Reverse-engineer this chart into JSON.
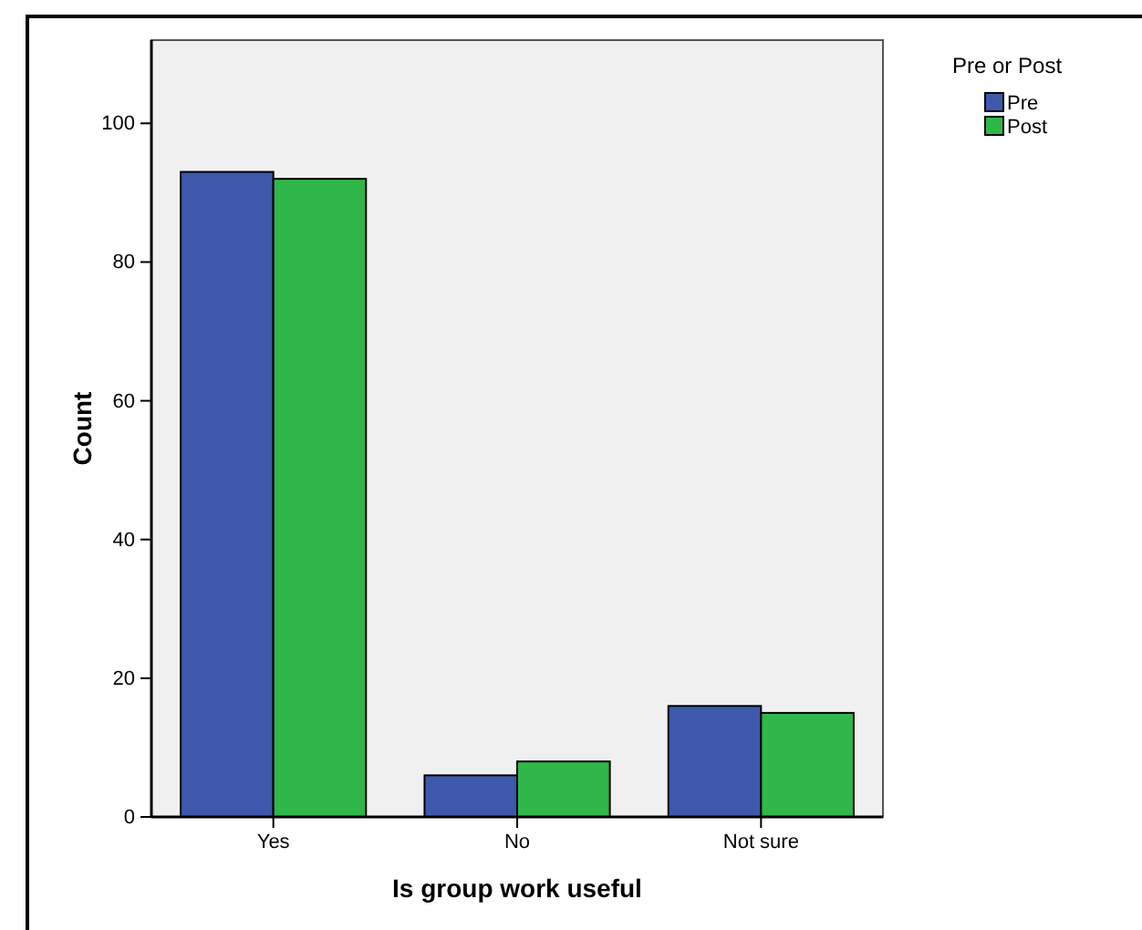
{
  "chart_data": {
    "type": "bar",
    "xlabel": "Is group work useful",
    "ylabel": "Count",
    "legend_title": "Pre or Post",
    "categories": [
      "Yes",
      "No",
      "Not sure"
    ],
    "series": [
      {
        "name": "Pre",
        "color": "#3e58ac",
        "values": [
          93,
          6,
          16
        ]
      },
      {
        "name": "Post",
        "color": "#2fb74a",
        "values": [
          92,
          8,
          15
        ]
      }
    ],
    "ylim": [
      0,
      112
    ],
    "yticks": [
      0,
      20,
      40,
      60,
      80,
      100
    ],
    "grid": false,
    "legend": "top right"
  }
}
